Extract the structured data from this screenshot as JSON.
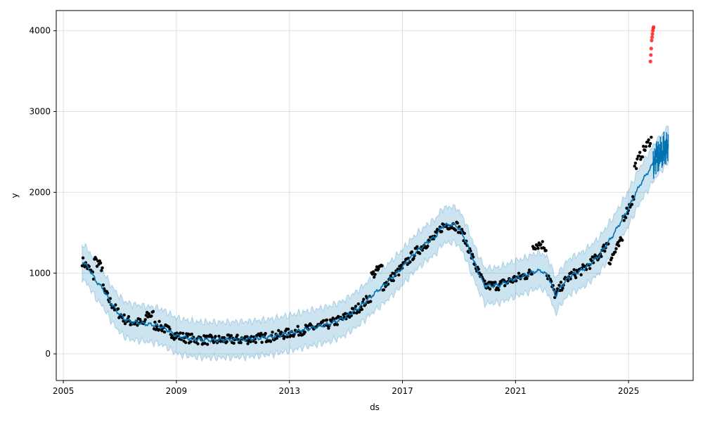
{
  "chart_data": {
    "type": "line",
    "title": "",
    "xlabel": "ds",
    "ylabel": "y",
    "xlim": [
      "2004-10-01",
      "2027-04-15"
    ],
    "ylim": [
      -330,
      4250
    ],
    "grid": true,
    "x_ticks": [
      "2005",
      "2009",
      "2013",
      "2017",
      "2021",
      "2025"
    ],
    "y_ticks": [
      0,
      1000,
      2000,
      3000,
      4000
    ],
    "colors": {
      "forecast": "#0072B2",
      "interval": "#0072B2",
      "observed": "#000000",
      "outlier": "#ff2020",
      "grid": "#e0e0e0"
    },
    "series": [
      {
        "role": "forecast",
        "x": [
          "2005-09-01",
          "2005-12-01",
          "2006-03-01",
          "2006-06-01",
          "2006-09-01",
          "2006-12-01",
          "2007-03-01",
          "2007-06-01",
          "2007-09-01",
          "2007-12-01",
          "2008-03-01",
          "2008-06-01",
          "2008-09-01",
          "2008-12-01",
          "2009-03-01",
          "2009-06-01",
          "2009-09-01",
          "2009-12-01",
          "2010-06-01",
          "2010-12-01",
          "2011-06-01",
          "2011-12-01",
          "2012-06-01",
          "2012-12-01",
          "2013-06-01",
          "2013-12-01",
          "2014-06-01",
          "2014-12-01",
          "2015-06-01",
          "2015-12-01",
          "2016-06-01",
          "2016-12-01",
          "2017-06-01",
          "2017-12-01",
          "2018-03-01",
          "2018-06-01",
          "2018-09-01",
          "2018-12-01",
          "2019-03-01",
          "2019-06-01",
          "2019-09-01",
          "2019-12-01",
          "2020-06-01",
          "2020-12-01",
          "2021-06-01",
          "2021-09-01",
          "2021-12-01",
          "2022-03-01",
          "2022-06-01",
          "2022-09-01",
          "2022-12-01",
          "2023-06-01",
          "2023-12-01",
          "2024-06-01",
          "2024-12-01",
          "2025-06-01",
          "2025-12-01",
          "2026-06-01"
        ],
        "y": [
          1150,
          1050,
          900,
          800,
          640,
          520,
          430,
          395,
          385,
          370,
          360,
          340,
          300,
          240,
          210,
          195,
          180,
          175,
          170,
          175,
          180,
          195,
          215,
          250,
          290,
          330,
          370,
          440,
          560,
          720,
          870,
          1040,
          1240,
          1390,
          1450,
          1580,
          1600,
          1590,
          1460,
          1240,
          1020,
          840,
          850,
          920,
          980,
          1020,
          1030,
          960,
          720,
          860,
          960,
          1050,
          1200,
          1450,
          1750,
          2100,
          2380,
          2600
        ]
      }
    ],
    "outlier_points": {
      "x": [
        "2025-10-10",
        "2025-10-15",
        "2025-10-20",
        "2025-10-25",
        "2025-11-01",
        "2025-11-05",
        "2025-11-10",
        "2025-11-15",
        "2025-11-20"
      ],
      "y": [
        3620,
        3700,
        3780,
        3880,
        3920,
        3960,
        4000,
        4030,
        4045
      ]
    }
  }
}
